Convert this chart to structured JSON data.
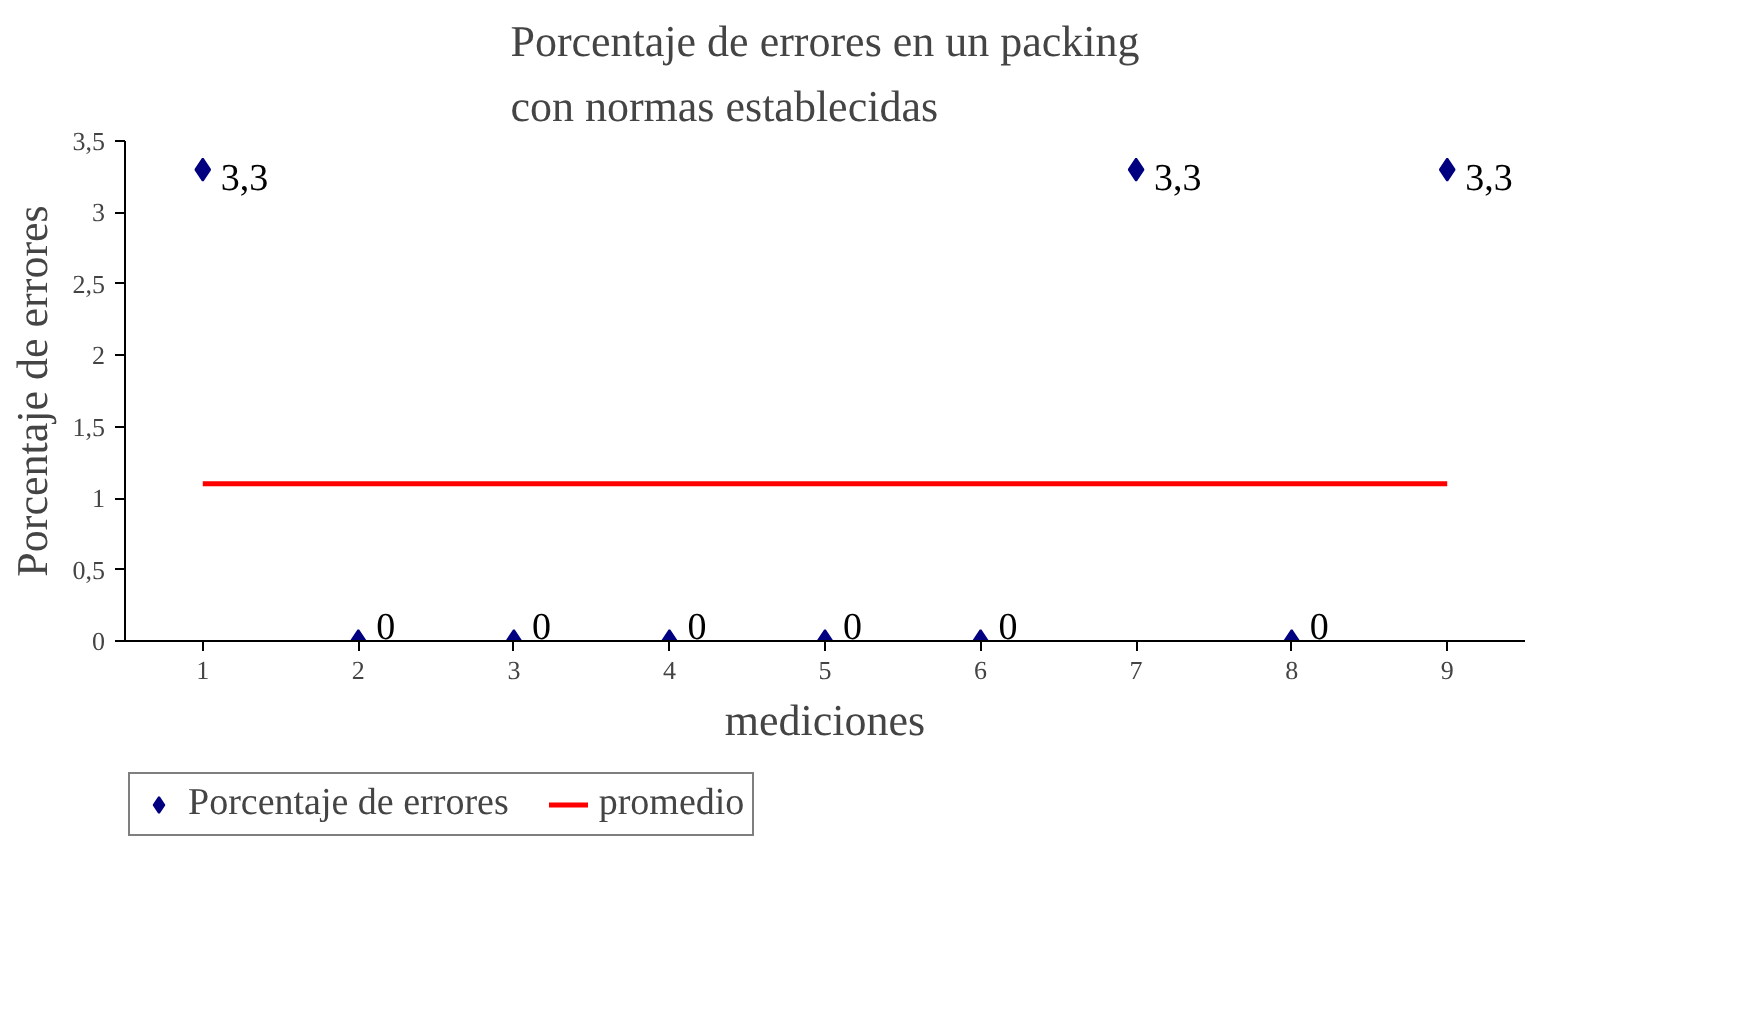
{
  "chart_data": {
    "type": "scatter",
    "title": "Porcentaje de errores en un packing\ncon normas establecidas",
    "xlabel": "mediciones",
    "ylabel": "Porcentaje de errores",
    "categories": [
      "1",
      "2",
      "3",
      "4",
      "5",
      "6",
      "7",
      "8",
      "9"
    ],
    "series": [
      {
        "name": "Porcentaje de errores",
        "color": "#000080",
        "marker": "diamond",
        "values": [
          3.3,
          0,
          0,
          0,
          0,
          0,
          3.3,
          0,
          3.3
        ],
        "value_labels": [
          "3,3",
          "0",
          "0",
          "0",
          "0",
          "0",
          "3,3",
          "0",
          "3,3"
        ]
      },
      {
        "name": "promedio",
        "type": "line",
        "color": "#ff0000",
        "line_style": "solid",
        "values": [
          1.1,
          1.1,
          1.1,
          1.1,
          1.1,
          1.1,
          1.1,
          1.1,
          1.1
        ]
      }
    ],
    "ylim": [
      0,
      3.5
    ],
    "yticks": [
      0,
      {
        "value": 0.5,
        "label": "0,5"
      },
      1,
      {
        "value": 1.5,
        "label": "1,5"
      },
      2,
      {
        "value": 2.5,
        "label": "2,5"
      },
      3,
      {
        "value": 3.5,
        "label": "3,5"
      }
    ],
    "grid": false,
    "legend": "bottom"
  }
}
